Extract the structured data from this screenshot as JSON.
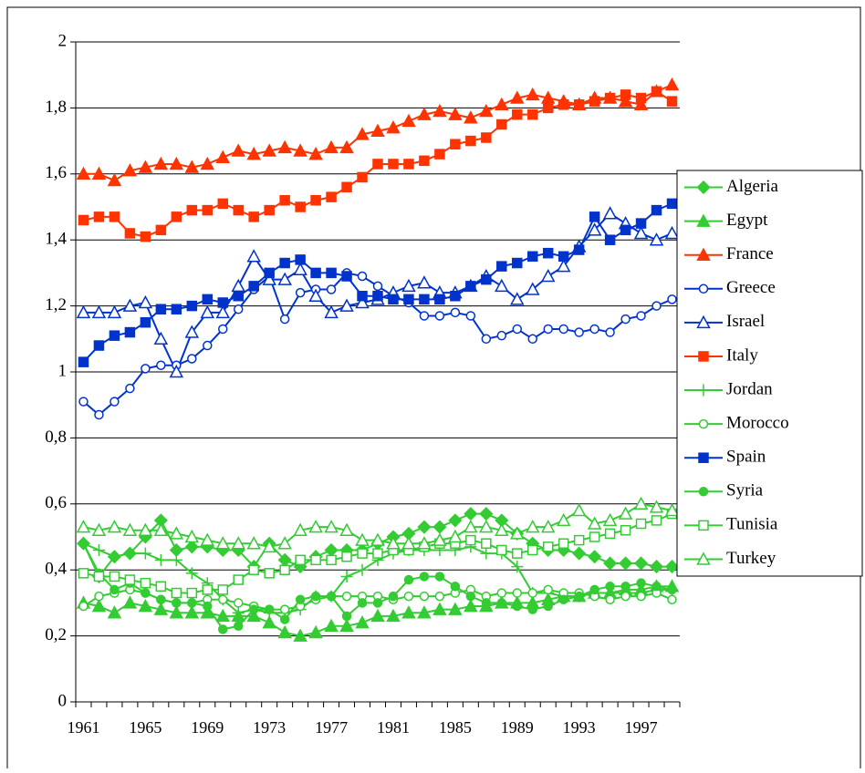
{
  "chart_data": {
    "type": "line",
    "categories": [
      "1961",
      null,
      null,
      null,
      "1965",
      null,
      null,
      null,
      "1969",
      null,
      null,
      null,
      "1973",
      null,
      null,
      null,
      "1977",
      null,
      null,
      null,
      "1981",
      null,
      null,
      null,
      "1985",
      null,
      null,
      null,
      "1989",
      null,
      null,
      null,
      "1993",
      null,
      null,
      null,
      "1997",
      null,
      null
    ],
    "ylim": [
      0,
      2
    ],
    "yticks": [
      0,
      {
        "value": 0.2,
        "label": "0,2"
      },
      {
        "value": 0.4,
        "label": "0,4"
      },
      {
        "value": 0.6,
        "label": "0,6"
      },
      {
        "value": 0.8,
        "label": "0,8"
      },
      1,
      {
        "value": 1.2,
        "label": "1,2"
      },
      {
        "value": 1.4,
        "label": "1,4"
      },
      {
        "value": 1.6,
        "label": "1,6"
      },
      {
        "value": 1.8,
        "label": "1,8"
      },
      2
    ],
    "grid": true,
    "legend": "right",
    "series": [
      {
        "name": "Algeria",
        "color": "#33cc33",
        "marker": "diamond",
        "values": [
          0.48,
          0.38,
          0.44,
          0.45,
          0.5,
          0.55,
          0.46,
          0.47,
          0.47,
          0.46,
          0.46,
          0.41,
          0.48,
          0.43,
          0.41,
          0.44,
          0.46,
          0.46,
          0.46,
          0.48,
          0.5,
          0.51,
          0.53,
          0.53,
          0.55,
          0.57,
          0.57,
          0.55,
          0.51,
          0.48,
          0.46,
          0.46,
          0.45,
          0.44,
          0.42,
          0.42,
          0.42,
          0.41,
          0.41
        ]
      },
      {
        "name": "Egypt",
        "color": "#33cc33",
        "marker": "triangle",
        "values": [
          0.3,
          0.29,
          0.27,
          0.3,
          0.29,
          0.28,
          0.27,
          0.27,
          0.27,
          0.26,
          0.26,
          0.26,
          0.24,
          0.21,
          0.2,
          0.21,
          0.23,
          0.23,
          0.24,
          0.26,
          0.26,
          0.27,
          0.27,
          0.28,
          0.28,
          0.29,
          0.29,
          0.3,
          0.3,
          0.3,
          0.31,
          0.32,
          0.32,
          0.33,
          0.33,
          0.34,
          0.34,
          0.35,
          0.35
        ]
      },
      {
        "name": "France",
        "color": "#ff3300",
        "marker": "triangle",
        "values": [
          1.6,
          1.6,
          1.58,
          1.61,
          1.62,
          1.63,
          1.63,
          1.62,
          1.63,
          1.65,
          1.67,
          1.66,
          1.67,
          1.68,
          1.67,
          1.66,
          1.68,
          1.68,
          1.72,
          1.73,
          1.74,
          1.76,
          1.78,
          1.79,
          1.78,
          1.77,
          1.79,
          1.81,
          1.83,
          1.84,
          1.83,
          1.82,
          1.81,
          1.83,
          1.83,
          1.82,
          1.81,
          1.85,
          1.87
        ]
      },
      {
        "name": "Greece",
        "color": "#0033cc",
        "marker": "circle-open",
        "values": [
          0.91,
          0.87,
          0.91,
          0.95,
          1.01,
          1.02,
          1.02,
          1.04,
          1.08,
          1.13,
          1.19,
          1.25,
          1.29,
          1.16,
          1.24,
          1.25,
          1.25,
          1.3,
          1.29,
          1.26,
          1.23,
          1.21,
          1.17,
          1.17,
          1.18,
          1.17,
          1.1,
          1.11,
          1.13,
          1.1,
          1.13,
          1.13,
          1.12,
          1.13,
          1.12,
          1.16,
          1.17,
          1.2,
          1.22
        ]
      },
      {
        "name": "Israel",
        "color": "#0033cc",
        "marker": "triangle-open",
        "values": [
          1.18,
          1.18,
          1.18,
          1.2,
          1.21,
          1.1,
          1.0,
          1.12,
          1.18,
          1.18,
          1.26,
          1.35,
          1.28,
          1.28,
          1.31,
          1.23,
          1.18,
          1.2,
          1.21,
          1.22,
          1.24,
          1.26,
          1.27,
          1.24,
          1.24,
          1.26,
          1.29,
          1.26,
          1.22,
          1.25,
          1.29,
          1.32,
          1.38,
          1.43,
          1.48,
          1.45,
          1.42,
          1.4,
          1.42
        ]
      },
      {
        "name": "Italy",
        "color": "#ff3300",
        "marker": "square",
        "values": [
          1.46,
          1.47,
          1.47,
          1.42,
          1.41,
          1.43,
          1.47,
          1.49,
          1.49,
          1.51,
          1.49,
          1.47,
          1.49,
          1.52,
          1.5,
          1.52,
          1.53,
          1.56,
          1.59,
          1.63,
          1.63,
          1.63,
          1.64,
          1.66,
          1.69,
          1.7,
          1.71,
          1.75,
          1.78,
          1.78,
          1.8,
          1.81,
          1.81,
          1.82,
          1.83,
          1.84,
          1.83,
          1.85,
          1.82
        ]
      },
      {
        "name": "Jordan",
        "color": "#33cc33",
        "marker": "plus",
        "values": [
          0.48,
          0.46,
          0.44,
          0.45,
          0.45,
          0.43,
          0.43,
          0.39,
          0.36,
          0.31,
          0.27,
          0.28,
          0.27,
          0.27,
          0.28,
          0.32,
          0.32,
          0.38,
          0.4,
          0.43,
          0.45,
          0.46,
          0.46,
          0.46,
          0.46,
          0.47,
          0.45,
          0.45,
          0.41,
          0.33,
          0.33,
          0.32,
          0.32,
          0.33,
          0.33,
          0.33,
          0.33,
          0.34,
          0.34
        ]
      },
      {
        "name": "Morocco",
        "color": "#33cc33",
        "marker": "circle-open",
        "values": [
          0.29,
          0.32,
          0.33,
          0.34,
          0.33,
          0.31,
          0.3,
          0.3,
          0.31,
          0.31,
          0.3,
          0.29,
          0.28,
          0.28,
          0.29,
          0.31,
          0.32,
          0.32,
          0.32,
          0.32,
          0.31,
          0.32,
          0.32,
          0.32,
          0.33,
          0.34,
          0.32,
          0.33,
          0.33,
          0.33,
          0.34,
          0.33,
          0.33,
          0.32,
          0.31,
          0.32,
          0.32,
          0.33,
          0.31
        ]
      },
      {
        "name": "Spain",
        "color": "#0033cc",
        "marker": "square",
        "values": [
          1.03,
          1.08,
          1.11,
          1.12,
          1.15,
          1.19,
          1.19,
          1.2,
          1.22,
          1.21,
          1.23,
          1.26,
          1.3,
          1.33,
          1.34,
          1.3,
          1.3,
          1.29,
          1.23,
          1.23,
          1.22,
          1.22,
          1.22,
          1.22,
          1.23,
          1.26,
          1.28,
          1.32,
          1.33,
          1.35,
          1.36,
          1.35,
          1.37,
          1.47,
          1.4,
          1.43,
          1.45,
          1.49,
          1.51
        ]
      },
      {
        "name": "Syria",
        "color": "#33cc33",
        "marker": "circle",
        "values": [
          0.48,
          0.39,
          0.34,
          0.36,
          0.33,
          0.31,
          0.3,
          0.3,
          0.29,
          0.22,
          0.23,
          0.28,
          0.28,
          0.25,
          0.31,
          0.32,
          0.32,
          0.26,
          0.3,
          0.3,
          0.32,
          0.37,
          0.38,
          0.38,
          0.35,
          0.32,
          0.3,
          0.3,
          0.29,
          0.28,
          0.29,
          0.31,
          0.32,
          0.34,
          0.35,
          0.35,
          0.36,
          0.35,
          0.34
        ]
      },
      {
        "name": "Tunisia",
        "color": "#33cc33",
        "marker": "square-open",
        "values": [
          0.39,
          0.38,
          0.38,
          0.37,
          0.36,
          0.35,
          0.33,
          0.33,
          0.34,
          0.34,
          0.37,
          0.4,
          0.39,
          0.4,
          0.43,
          0.43,
          0.43,
          0.44,
          0.45,
          0.45,
          0.46,
          0.46,
          0.47,
          0.48,
          0.48,
          0.49,
          0.48,
          0.46,
          0.45,
          0.46,
          0.47,
          0.48,
          0.49,
          0.5,
          0.51,
          0.52,
          0.54,
          0.55,
          0.57
        ]
      },
      {
        "name": "Turkey",
        "color": "#33cc33",
        "marker": "triangle-open",
        "values": [
          0.53,
          0.52,
          0.53,
          0.52,
          0.52,
          0.52,
          0.51,
          0.5,
          0.49,
          0.48,
          0.48,
          0.48,
          0.47,
          0.48,
          0.52,
          0.53,
          0.53,
          0.52,
          0.49,
          0.49,
          0.48,
          0.48,
          0.48,
          0.49,
          0.5,
          0.53,
          0.53,
          0.52,
          0.51,
          0.53,
          0.53,
          0.55,
          0.58,
          0.54,
          0.55,
          0.57,
          0.6,
          0.59,
          0.58
        ]
      }
    ]
  }
}
